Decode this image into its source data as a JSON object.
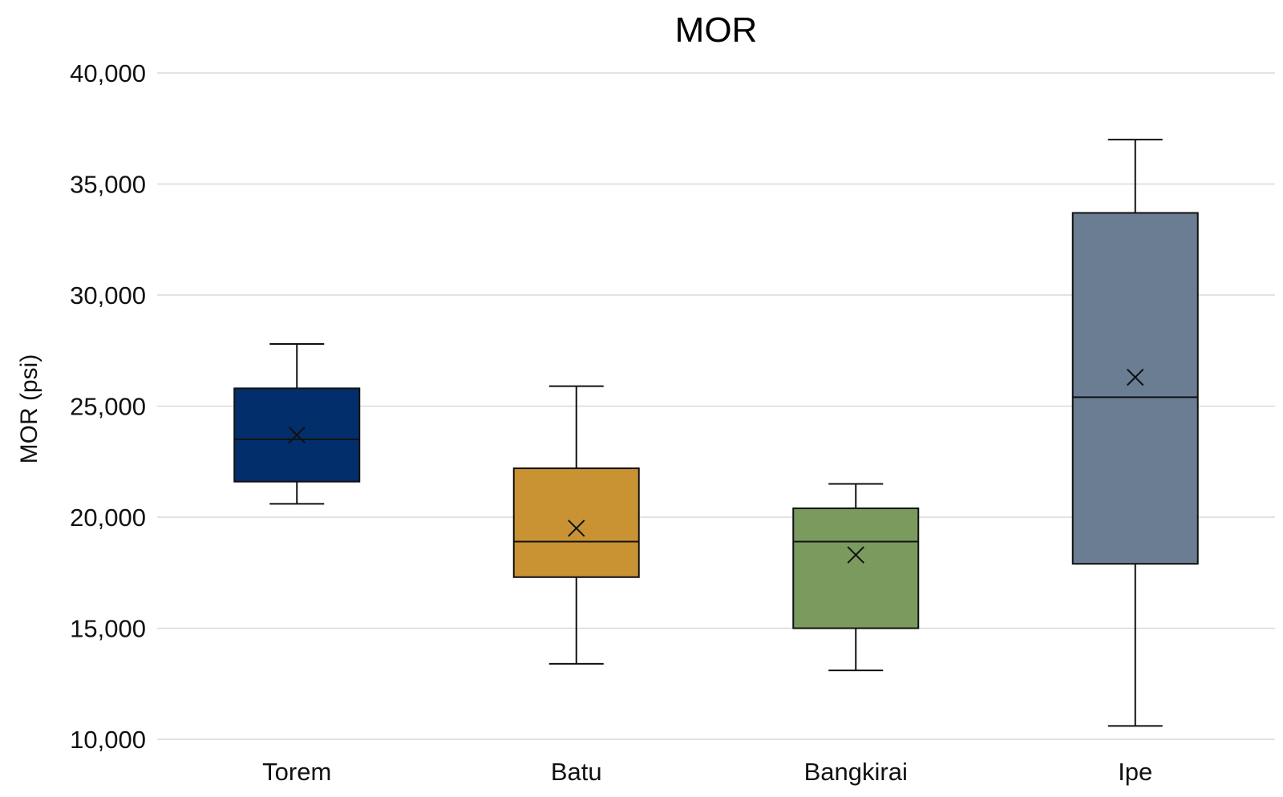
{
  "chart_data": {
    "type": "box",
    "title": "MOR",
    "xlabel": "",
    "ylabel": "MOR (psi)",
    "ylim": [
      10000,
      40000
    ],
    "yticks": [
      10000,
      15000,
      20000,
      25000,
      30000,
      35000,
      40000
    ],
    "ytick_labels": [
      "10,000",
      "15,000",
      "20,000",
      "25,000",
      "30,000",
      "35,000",
      "40,000"
    ],
    "grid": true,
    "series": [
      {
        "name": "Torem",
        "color": "#022f6b",
        "min": 20600,
        "q1": 21600,
        "median": 23500,
        "q3": 25800,
        "max": 27800,
        "mean": 23700
      },
      {
        "name": "Batu",
        "color": "#c99233",
        "min": 13400,
        "q1": 17300,
        "median": 18900,
        "q3": 22200,
        "max": 25900,
        "mean": 19500
      },
      {
        "name": "Bangkirai",
        "color": "#7a9a5e",
        "min": 13100,
        "q1": 15000,
        "median": 18900,
        "q3": 20400,
        "max": 21500,
        "mean": 18300
      },
      {
        "name": "Ipe",
        "color": "#6a7d92",
        "min": 10600,
        "q1": 17900,
        "median": 25400,
        "q3": 33700,
        "max": 37000,
        "mean": 26300
      }
    ]
  }
}
